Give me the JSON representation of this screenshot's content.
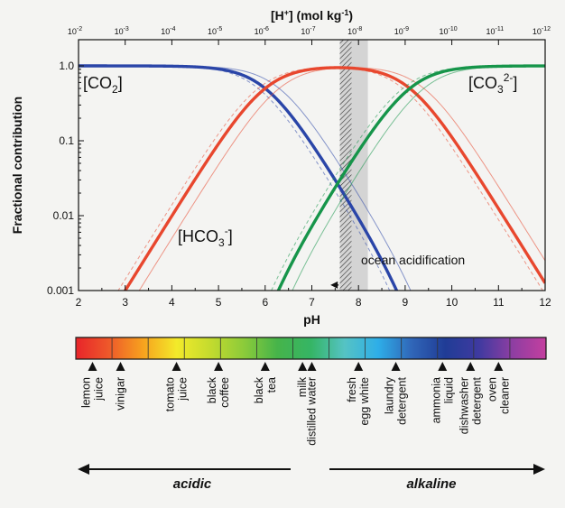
{
  "chart_data": {
    "type": "line",
    "title": "",
    "xlabel": "pH",
    "ylabel": "Fractional contribution",
    "x2label_main": "[H",
    "x2label_sup": "+",
    "x2label_end": "] (mol kg",
    "x2label_sup2": "-1",
    "x2label_close": ")",
    "xlim": [
      2,
      12
    ],
    "ylim": [
      0.001,
      1.0
    ],
    "yscale": "log",
    "xticks": [
      "2",
      "3",
      "4",
      "5",
      "6",
      "7",
      "8",
      "9",
      "10",
      "11",
      "12"
    ],
    "yticks": [
      "0.001",
      "0.01",
      "0.1",
      "1.0"
    ],
    "top_ticks": [
      "10-2",
      "10-3",
      "10-4",
      "10-5",
      "10-6",
      "10-7",
      "10-8",
      "10-9",
      "10-10",
      "10-11",
      "10-12"
    ],
    "pK1": 6.0,
    "pK2": 9.1,
    "series": [
      {
        "name": "CO2",
        "label_main": "[CO",
        "label_sub": "2",
        "label_close": "]",
        "color": "#2a45a8",
        "pK1": 6.0,
        "pK2": 9.1
      },
      {
        "name": "HCO3-",
        "label_main": "[HCO",
        "label_sub": "3",
        "label_sup": "-",
        "label_close": "]",
        "color": "#e8472e",
        "pK1": 6.0,
        "pK2": 9.1
      },
      {
        "name": "CO3 2-",
        "label_main": "[CO",
        "label_sub": "3",
        "label_sup": "2-",
        "label_close": "]",
        "color": "#16954a",
        "pK1": 6.0,
        "pK2": 9.1
      }
    ],
    "variant_curves": [
      {
        "pK1": 6.3,
        "pK2": 9.4
      },
      {
        "pK1": 5.85,
        "pK2": 8.95
      }
    ],
    "shaded_band": {
      "from": 7.6,
      "to": 8.2,
      "hatched_from": 7.6,
      "hatched_to": 7.85
    },
    "annotation": "ocean acidification",
    "annotation_arrow": {
      "from": 8.0,
      "to": 7.4,
      "y": 0.0017
    }
  },
  "ph_scale": {
    "colors": [
      "#e8242a",
      "#ee5a2a",
      "#f7a21e",
      "#f3ea2a",
      "#c4db2e",
      "#8ccb3a",
      "#46b44a",
      "#35b565",
      "#55c3c4",
      "#2eaee8",
      "#3066b8",
      "#203c96",
      "#3f3aa0",
      "#8e3ea2",
      "#c43f9f"
    ],
    "substances": [
      {
        "label": [
          "lemon",
          "juice"
        ],
        "ph": 2.3
      },
      {
        "label": [
          "vinigar"
        ],
        "ph": 2.9
      },
      {
        "label": [
          "tomato",
          "juice"
        ],
        "ph": 4.1
      },
      {
        "label": [
          "black",
          "coffee"
        ],
        "ph": 5.0
      },
      {
        "label": [
          "black",
          "tea"
        ],
        "ph": 6.0
      },
      {
        "label": [
          "milk"
        ],
        "ph": 6.8
      },
      {
        "label": [
          "distilled water"
        ],
        "ph": 7.0
      },
      {
        "label": [
          "fresh",
          "egg white"
        ],
        "ph": 8.0
      },
      {
        "label": [
          "laundry",
          "detergent"
        ],
        "ph": 8.8
      },
      {
        "label": [
          "ammonia",
          "liquid"
        ],
        "ph": 9.8
      },
      {
        "label": [
          "dishwasher",
          "detergent"
        ],
        "ph": 10.4
      },
      {
        "label": [
          "oven",
          "cleaner"
        ],
        "ph": 11.0
      }
    ]
  },
  "direction": {
    "acidic": "acidic",
    "alkaline": "alkaline"
  }
}
